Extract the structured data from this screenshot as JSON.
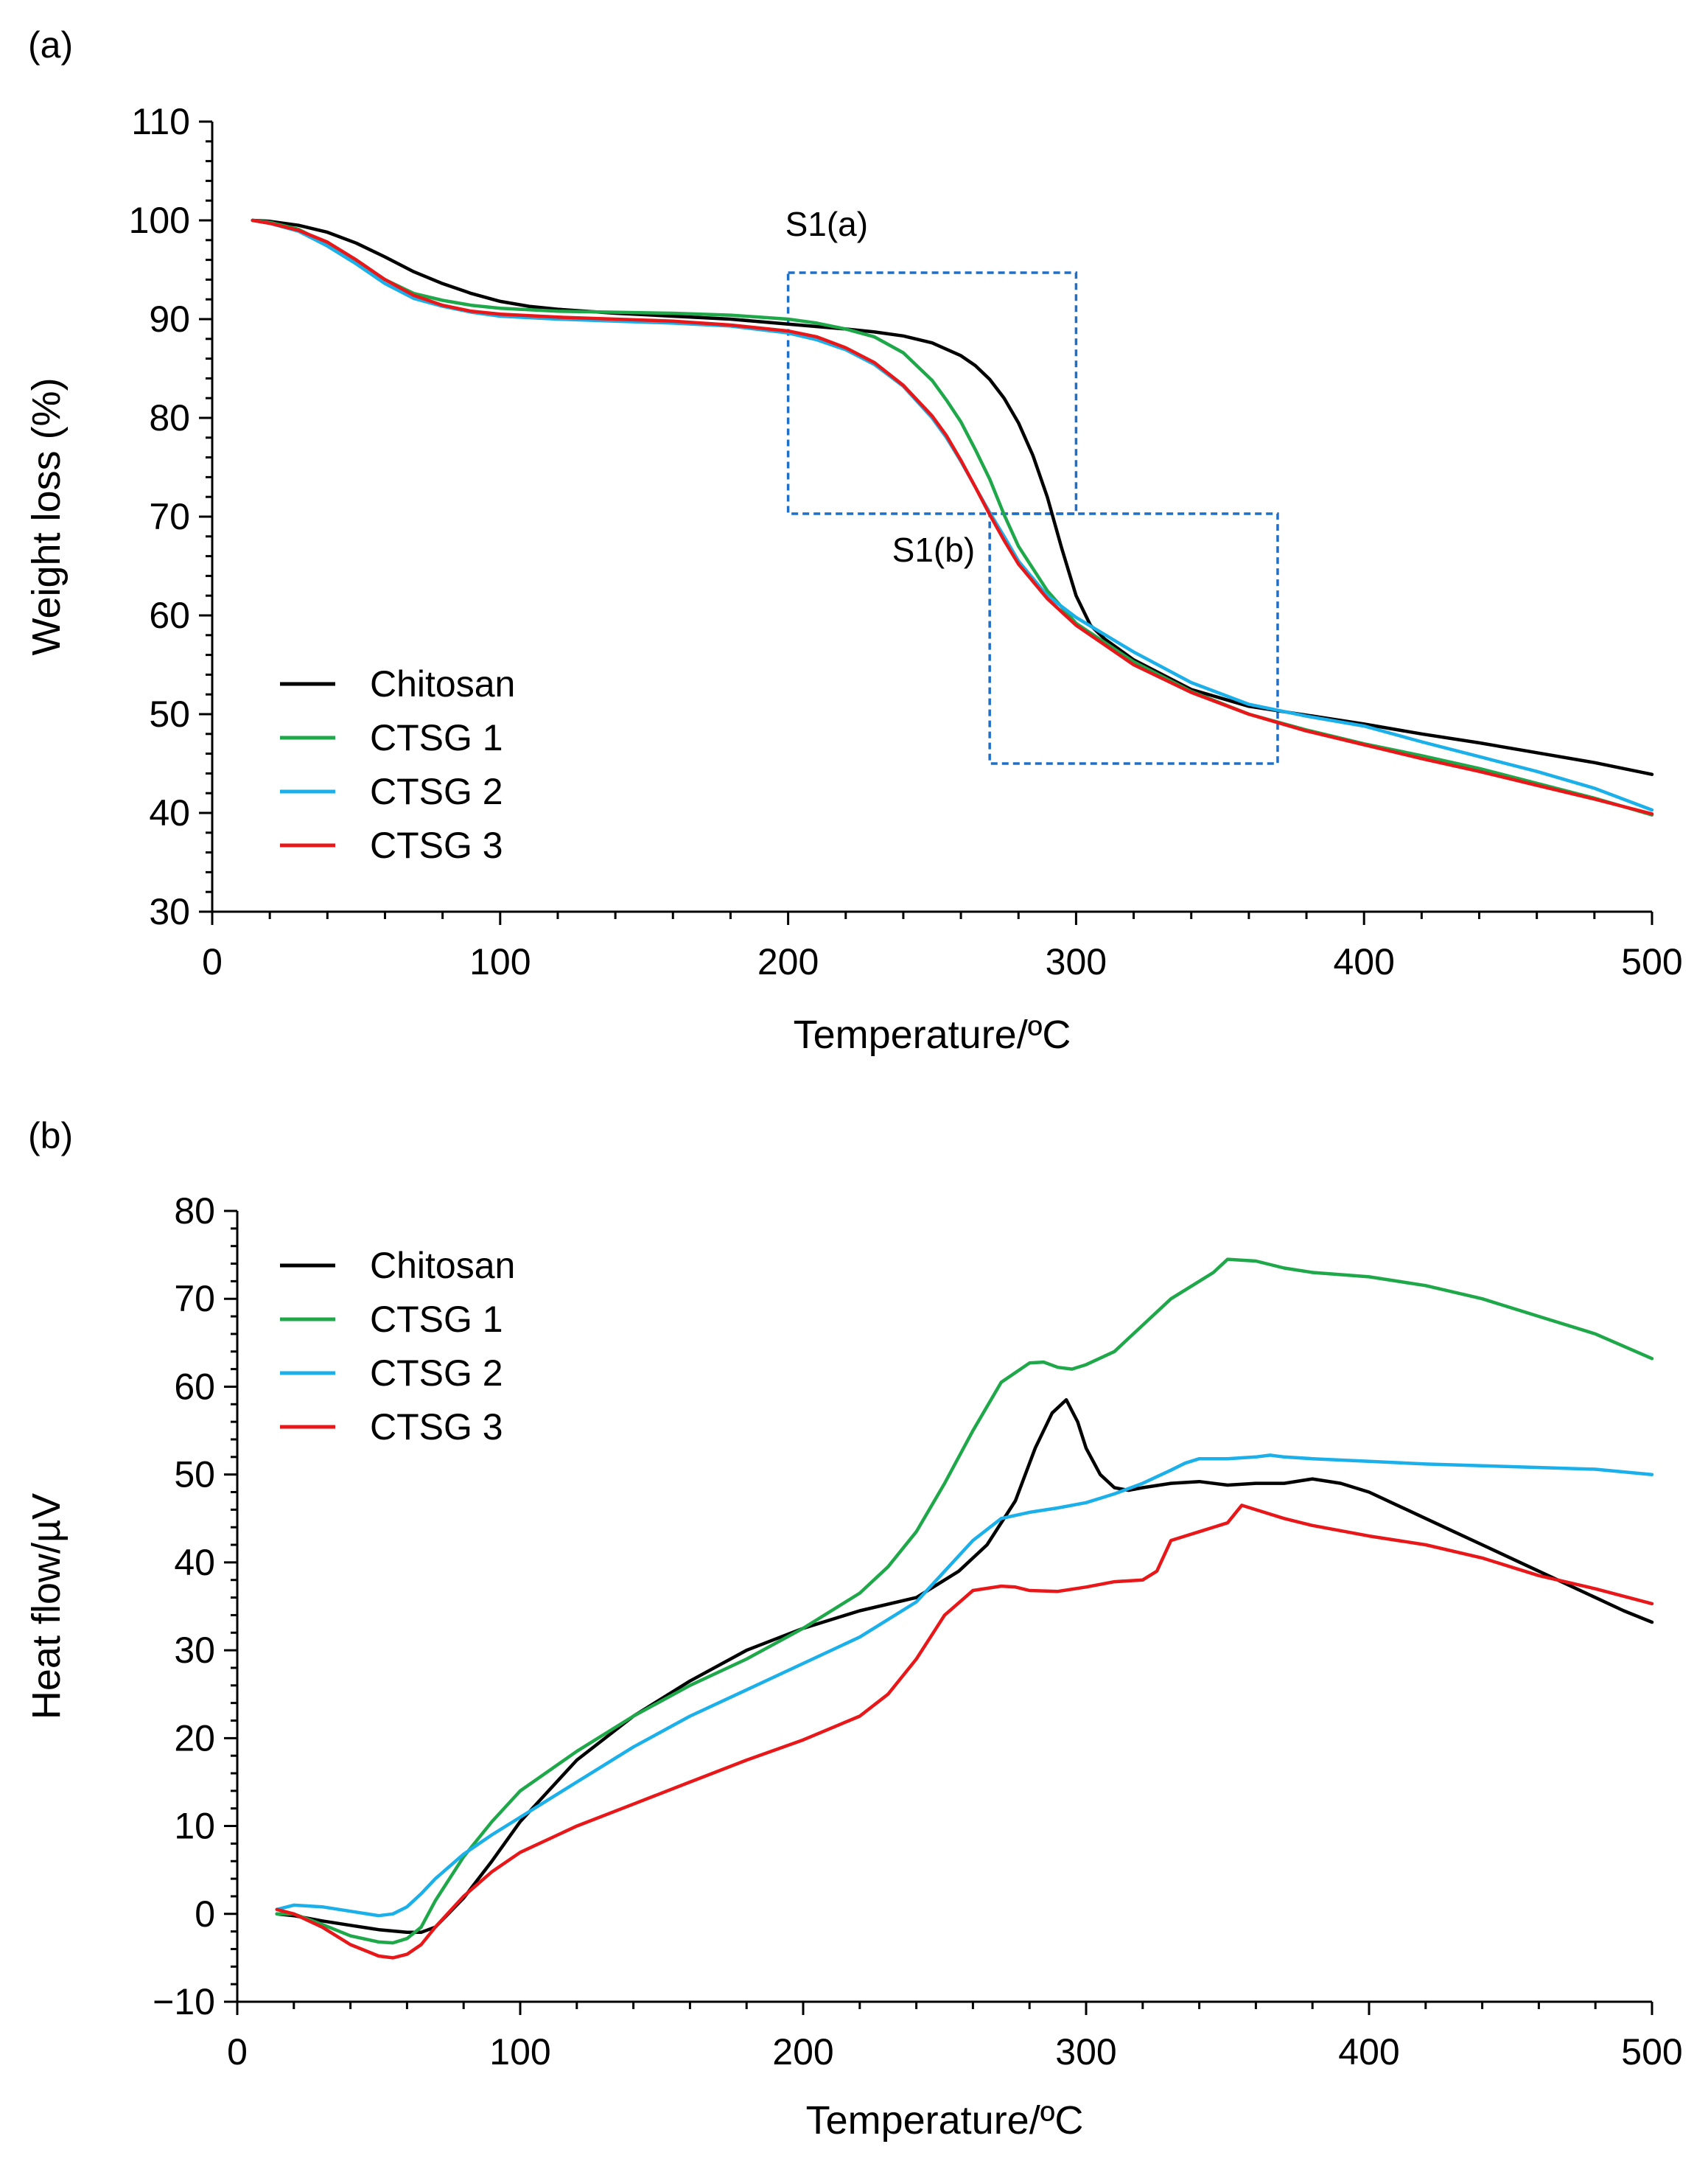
{
  "figure": {
    "panel_a_label": "(a)",
    "panel_b_label": "(b)"
  },
  "colors": {
    "Chitosan": "#000000",
    "CTSG 1": "#1fa84a",
    "CTSG 2": "#1bb0ea",
    "CTSG 3": "#e8181a",
    "box": "#1f6ec8"
  },
  "chart_data": [
    {
      "id": "a",
      "type": "line",
      "title": "",
      "xlabel": "Temperature/ºC",
      "ylabel": "Weight loss (%)",
      "xlim": [
        0,
        500
      ],
      "ylim": [
        30,
        110
      ],
      "xticks": [
        0,
        100,
        200,
        300,
        400,
        500
      ],
      "yticks": [
        30,
        40,
        50,
        60,
        70,
        80,
        90,
        100,
        110
      ],
      "legend": [
        "Chitosan",
        "CTSG 1",
        "CTSG 2",
        "CTSG 3"
      ],
      "legend_position": "bottom-left",
      "annotations": [
        {
          "label": "S1(a)",
          "x_range": [
            200,
            300
          ],
          "y_range": [
            70.3,
            94.7
          ]
        },
        {
          "label": "S1(b)",
          "x_range": [
            270,
            370
          ],
          "y_range": [
            45,
            70.3
          ]
        }
      ],
      "series": [
        {
          "name": "Chitosan",
          "x": [
            14,
            20,
            30,
            40,
            50,
            60,
            70,
            80,
            90,
            100,
            110,
            120,
            140,
            160,
            180,
            200,
            220,
            230,
            240,
            250,
            260,
            265,
            270,
            275,
            280,
            285,
            290,
            295,
            300,
            305,
            310,
            320,
            340,
            360,
            380,
            400,
            420,
            440,
            460,
            480,
            500
          ],
          "y": [
            100,
            99.9,
            99.5,
            98.8,
            97.7,
            96.3,
            94.8,
            93.6,
            92.6,
            91.8,
            91.3,
            91,
            90.6,
            90.3,
            90,
            89.5,
            89,
            88.7,
            88.3,
            87.6,
            86.3,
            85.3,
            83.9,
            82,
            79.5,
            76.2,
            72,
            66.8,
            62,
            59,
            57.6,
            55.5,
            52.5,
            50.8,
            49.9,
            49,
            48,
            47.1,
            46.1,
            45.1,
            43.9
          ]
        },
        {
          "name": "CTSG 1",
          "x": [
            14,
            20,
            30,
            40,
            50,
            60,
            70,
            80,
            90,
            100,
            120,
            140,
            160,
            180,
            200,
            210,
            220,
            230,
            240,
            250,
            255,
            260,
            265,
            270,
            275,
            280,
            290,
            300,
            320,
            340,
            360,
            380,
            400,
            420,
            440,
            460,
            480,
            500
          ],
          "y": [
            100,
            99.8,
            99.1,
            97.6,
            95.8,
            94,
            92.6,
            91.9,
            91.4,
            91.1,
            90.8,
            90.7,
            90.6,
            90.4,
            90,
            89.6,
            89,
            88.2,
            86.6,
            83.8,
            81.8,
            79.6,
            76.8,
            73.8,
            70.2,
            67,
            62.5,
            59.2,
            55.3,
            52.3,
            50,
            48.4,
            47,
            45.8,
            44.5,
            43,
            41.5,
            39.8
          ]
        },
        {
          "name": "CTSG 2",
          "x": [
            14,
            20,
            30,
            40,
            50,
            60,
            70,
            80,
            90,
            100,
            120,
            140,
            160,
            180,
            200,
            210,
            220,
            230,
            240,
            250,
            255,
            260,
            265,
            270,
            275,
            280,
            290,
            300,
            320,
            340,
            360,
            380,
            400,
            420,
            440,
            460,
            480,
            500
          ],
          "y": [
            100,
            99.7,
            98.9,
            97.4,
            95.6,
            93.6,
            92.1,
            91.3,
            90.7,
            90.3,
            90,
            89.8,
            89.6,
            89.3,
            88.6,
            87.9,
            86.9,
            85.4,
            83.2,
            80,
            78,
            75.6,
            73,
            70.4,
            68,
            65.5,
            62,
            59.8,
            56.3,
            53.2,
            51,
            49.8,
            48.8,
            47.2,
            45.7,
            44.2,
            42.5,
            40.3
          ]
        },
        {
          "name": "CTSG 3",
          "x": [
            14,
            20,
            30,
            40,
            50,
            60,
            70,
            80,
            90,
            100,
            120,
            140,
            160,
            180,
            200,
            210,
            220,
            230,
            240,
            250,
            255,
            260,
            265,
            270,
            275,
            280,
            290,
            300,
            320,
            340,
            360,
            380,
            400,
            420,
            440,
            460,
            480,
            500
          ],
          "y": [
            100,
            99.7,
            99,
            97.8,
            96,
            94,
            92.4,
            91.4,
            90.8,
            90.5,
            90.2,
            90,
            89.8,
            89.4,
            88.8,
            88.2,
            87.1,
            85.6,
            83.3,
            80.2,
            78.2,
            75.7,
            73,
            70.2,
            67.6,
            65.2,
            61.7,
            59,
            55,
            52.2,
            50,
            48.3,
            46.9,
            45.5,
            44.2,
            42.8,
            41.4,
            39.9
          ]
        }
      ]
    },
    {
      "id": "b",
      "type": "line",
      "title": "",
      "xlabel": "Temperature/ºC",
      "ylabel": "Heat flow/µV",
      "xlim": [
        0,
        500
      ],
      "ylim": [
        -10,
        80
      ],
      "xticks": [
        0,
        100,
        200,
        300,
        400,
        500
      ],
      "yticks": [
        -10,
        0,
        10,
        20,
        30,
        40,
        50,
        60,
        70,
        80
      ],
      "ytick_labels": [
        "−10",
        "0",
        "10",
        "20",
        "30",
        "40",
        "50",
        "60",
        "70",
        "80"
      ],
      "legend": [
        "Chitosan",
        "CTSG 1",
        "CTSG 2",
        "CTSG 3"
      ],
      "legend_position": "top-left",
      "series": [
        {
          "name": "Chitosan",
          "x": [
            14,
            20,
            30,
            40,
            50,
            60,
            65,
            70,
            80,
            90,
            100,
            120,
            140,
            160,
            180,
            200,
            220,
            240,
            255,
            265,
            275,
            282,
            288,
            293,
            297,
            300,
            305,
            310,
            315,
            320,
            330,
            340,
            350,
            360,
            370,
            380,
            390,
            400,
            410,
            420,
            430,
            440,
            450,
            460,
            470,
            480,
            490,
            500
          ],
          "y": [
            0,
            -0.2,
            -0.8,
            -1.3,
            -1.8,
            -2.1,
            -2.1,
            -1.5,
            1.8,
            6,
            10.5,
            17.5,
            22.5,
            26.5,
            30,
            32.5,
            34.5,
            36,
            39,
            42,
            47,
            53,
            57,
            58.5,
            56,
            53,
            50,
            48.5,
            48.2,
            48.5,
            49,
            49.2,
            48.8,
            49,
            49,
            49.5,
            49,
            48,
            46.5,
            45,
            43.5,
            42,
            40.5,
            39,
            37.5,
            36,
            34.5,
            33.2
          ]
        },
        {
          "name": "CTSG 1",
          "x": [
            14,
            20,
            30,
            40,
            50,
            55,
            60,
            65,
            70,
            80,
            90,
            100,
            120,
            140,
            160,
            180,
            200,
            220,
            230,
            240,
            250,
            260,
            270,
            280,
            285,
            290,
            295,
            300,
            310,
            320,
            330,
            340,
            345,
            350,
            360,
            370,
            380,
            400,
            420,
            440,
            460,
            480,
            500
          ],
          "y": [
            0,
            0,
            -1.2,
            -2.5,
            -3.2,
            -3.3,
            -2.8,
            -1.5,
            1.5,
            6.5,
            10.5,
            14,
            18.5,
            22.5,
            26,
            29,
            32.5,
            36.5,
            39.5,
            43.5,
            49,
            55,
            60.5,
            62.7,
            62.8,
            62.2,
            62,
            62.5,
            64,
            67,
            70,
            72,
            73,
            74.5,
            74.3,
            73.5,
            73,
            72.5,
            71.5,
            70,
            68,
            66,
            63.2
          ]
        },
        {
          "name": "CTSG 2",
          "x": [
            14,
            20,
            30,
            40,
            50,
            55,
            60,
            65,
            70,
            80,
            90,
            100,
            120,
            140,
            160,
            180,
            200,
            220,
            240,
            250,
            260,
            270,
            280,
            290,
            300,
            310,
            320,
            330,
            335,
            340,
            350,
            360,
            365,
            370,
            380,
            400,
            420,
            440,
            460,
            480,
            500
          ],
          "y": [
            0.5,
            1,
            0.8,
            0.3,
            -0.2,
            0,
            0.8,
            2.3,
            4,
            6.8,
            9,
            11,
            15,
            19,
            22.5,
            25.5,
            28.5,
            31.5,
            35.5,
            39,
            42.5,
            45,
            45.7,
            46.2,
            46.8,
            47.8,
            49,
            50.5,
            51.3,
            51.8,
            51.8,
            52,
            52.2,
            52,
            51.8,
            51.5,
            51.2,
            51,
            50.8,
            50.6,
            50
          ]
        },
        {
          "name": "CTSG 3",
          "x": [
            14,
            20,
            30,
            40,
            50,
            55,
            60,
            65,
            70,
            80,
            90,
            100,
            120,
            140,
            160,
            180,
            200,
            220,
            230,
            240,
            250,
            260,
            270,
            275,
            280,
            290,
            300,
            310,
            320,
            325,
            330,
            340,
            350,
            355,
            360,
            370,
            380,
            400,
            420,
            440,
            460,
            480,
            500
          ],
          "y": [
            0.5,
            0,
            -1.5,
            -3.5,
            -4.8,
            -5,
            -4.6,
            -3.5,
            -1.5,
            2,
            4.8,
            7,
            10,
            12.5,
            15,
            17.5,
            19.8,
            22.5,
            25,
            29,
            34,
            36.8,
            37.3,
            37.2,
            36.8,
            36.7,
            37.2,
            37.8,
            38,
            39,
            42.5,
            43.5,
            44.5,
            46.5,
            46,
            45,
            44.2,
            43,
            42,
            40.5,
            38.5,
            37,
            35.3
          ]
        }
      ]
    }
  ]
}
